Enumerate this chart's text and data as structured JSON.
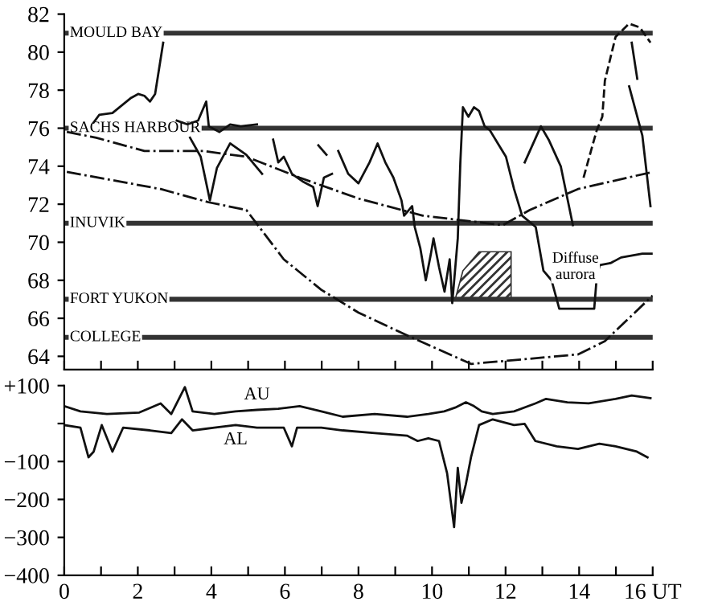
{
  "chart_data": [
    {
      "type": "line",
      "xlim": [
        0,
        16
      ],
      "ylim": [
        63.3,
        82
      ],
      "xticks": [
        {
          "value": 0,
          "label": null
        },
        {
          "value": 1,
          "label": null
        },
        {
          "value": 2,
          "label": null
        },
        {
          "value": 3,
          "label": null
        },
        {
          "value": 4,
          "label": null
        },
        {
          "value": 5,
          "label": null
        },
        {
          "value": 6,
          "label": null
        },
        {
          "value": 7,
          "label": null
        },
        {
          "value": 8,
          "label": null
        },
        {
          "value": 9,
          "label": null
        },
        {
          "value": 10,
          "label": null
        },
        {
          "value": 11,
          "label": null
        },
        {
          "value": 12,
          "label": null
        },
        {
          "value": 13,
          "label": null
        },
        {
          "value": 14,
          "label": null
        },
        {
          "value": 15,
          "label": null
        },
        {
          "value": 16,
          "label": null
        }
      ],
      "yticks": [
        64,
        66,
        68,
        70,
        72,
        74,
        76,
        78,
        80,
        82
      ],
      "tick_labels": "y",
      "grid": false,
      "legend": false,
      "marker": "none",
      "ref_lines": [
        {
          "axis": "y",
          "value": 81,
          "label": "MOULD BAY",
          "color": "#333333"
        },
        {
          "axis": "y",
          "value": 76,
          "label": "SACHS HARBOUR",
          "color": "#333333"
        },
        {
          "axis": "y",
          "value": 71,
          "label": "INUVIK",
          "color": "#333333"
        },
        {
          "axis": "y",
          "value": 67,
          "label": "FORT YUKON",
          "color": "#333333"
        },
        {
          "axis": "y",
          "value": 65,
          "label": "COLLEGE",
          "color": "#333333"
        }
      ],
      "annotations": [
        {
          "text": "Diffuse\naurora",
          "x": 13.9,
          "y": 68.7
        }
      ],
      "series": [
        {
          "color": "#111111",
          "line_style": "solid",
          "x": [
            0.8,
            0.95,
            1.31,
            1.82,
            2.01,
            2.18,
            2.33,
            2.47,
            2.69
          ],
          "values": [
            76.3,
            76.7,
            76.8,
            77.6,
            77.8,
            77.7,
            77.4,
            77.8,
            80.5
          ]
        },
        {
          "color": "#111111",
          "line_style": "dashdot",
          "x": [
            0.07,
            0.87,
            2.18,
            3.78,
            4.95,
            6.4,
            8.0,
            9.75,
            11.93,
            12.66,
            13.97,
            16.0
          ],
          "values": [
            75.8,
            75.5,
            74.8,
            74.8,
            74.5,
            73.4,
            72.3,
            71.4,
            70.9,
            71.7,
            72.8,
            73.7
          ]
        },
        {
          "color": "#111111",
          "line_style": "dashdot",
          "x": [
            0.07,
            2.62,
            3.93,
            4.95,
            5.97,
            6.99,
            8.0,
            9.32,
            11.06,
            13.97,
            14.7,
            16.0
          ],
          "values": [
            73.7,
            72.8,
            72.1,
            71.7,
            69.1,
            67.5,
            66.3,
            65.1,
            63.6,
            64.1,
            64.8,
            67.2
          ]
        },
        {
          "color": "#111111",
          "line_style": "solid",
          "x": [
            3.06,
            3.35,
            3.64,
            3.86,
            3.93,
            4.22,
            4.51,
            4.8,
            5.24
          ],
          "values": [
            76.4,
            76.2,
            76.4,
            77.4,
            76.1,
            75.8,
            76.2,
            76.1,
            76.2
          ]
        },
        {
          "color": "#111111",
          "line_style": "solid",
          "x": [
            3.42,
            3.71,
            3.96,
            4.15,
            4.51,
            4.95,
            5.38
          ],
          "values": [
            75.5,
            74.5,
            72.2,
            73.9,
            75.2,
            74.6,
            73.6
          ]
        },
        {
          "color": "#111111",
          "line_style": "solid",
          "x": [
            5.68,
            5.82,
            5.97,
            6.19,
            6.48,
            6.77,
            6.89,
            7.06,
            7.28
          ],
          "values": [
            75.4,
            74.2,
            74.5,
            73.6,
            73.2,
            72.9,
            71.9,
            73.4,
            73.6
          ]
        },
        {
          "color": "#111111",
          "line_style": "solid",
          "x": [
            6.91,
            7.13
          ],
          "values": [
            75.1,
            74.6
          ]
        },
        {
          "color": "#111111",
          "line_style": "solid",
          "x": [
            7.45,
            7.72,
            8.0,
            8.3,
            8.52,
            8.73,
            8.95,
            9.17,
            9.24,
            9.46,
            9.53,
            9.68,
            9.83,
            9.97,
            10.04,
            10.19,
            10.34,
            10.48,
            10.55,
            10.7,
            10.77,
            10.84,
            10.99,
            11.14,
            11.28,
            11.43,
            11.57,
            11.79,
            12.01,
            12.23,
            12.45,
            12.82,
            13.03,
            13.25,
            13.46,
            13.97,
            14.41,
            14.48,
            14.56,
            14.85,
            15.14,
            15.72,
            16.0
          ],
          "values": [
            74.8,
            73.6,
            73.1,
            74.2,
            75.2,
            74.2,
            73.4,
            72.2,
            71.4,
            71.9,
            70.8,
            69.7,
            68.0,
            69.4,
            70.2,
            68.7,
            67.4,
            69.1,
            66.8,
            70.2,
            74.2,
            77.1,
            76.6,
            77.1,
            76.9,
            76.1,
            75.9,
            75.2,
            74.5,
            72.8,
            71.4,
            70.8,
            68.5,
            68.0,
            66.5,
            66.5,
            66.5,
            68.2,
            68.8,
            68.9,
            69.2,
            69.4,
            69.4
          ]
        },
        {
          "color": "#111111",
          "line_style": "solid",
          "x": [
            12.52,
            12.96,
            13.17,
            13.5,
            13.83
          ],
          "values": [
            74.2,
            76.1,
            75.4,
            74.0,
            70.9
          ]
        },
        {
          "color": "#111111",
          "line_style": "solid",
          "x": [
            15.43,
            15.58
          ],
          "values": [
            80.5,
            78.6
          ]
        },
        {
          "color": "#111111",
          "line_style": "solid",
          "x": [
            15.36,
            15.72,
            15.94
          ],
          "values": [
            78.2,
            75.6,
            71.9
          ]
        },
        {
          "color": "#111111",
          "line_style": "dashed",
          "x": [
            14.12,
            14.48,
            14.63,
            14.7,
            14.99,
            15.36,
            15.65,
            15.94
          ],
          "values": [
            73.4,
            75.9,
            76.6,
            78.5,
            80.8,
            81.5,
            81.3,
            80.5
          ]
        },
        {
          "type": "area",
          "color": "#333333",
          "x": [
            10.63,
            10.84,
            11.28,
            12.15,
            12.15
          ],
          "values": [
            67.0,
            68.5,
            69.5,
            69.5,
            67.0
          ]
        }
      ]
    },
    {
      "type": "line",
      "xlim": [
        0,
        16
      ],
      "ylim": [
        -400,
        100
      ],
      "xticks": [
        0,
        {
          "value": 1,
          "label": null
        },
        2,
        {
          "value": 3,
          "label": null
        },
        4,
        {
          "value": 5,
          "label": null
        },
        6,
        {
          "value": 7,
          "label": null
        },
        8,
        {
          "value": 9,
          "label": null
        },
        10,
        {
          "value": 11,
          "label": null
        },
        12,
        {
          "value": 13,
          "label": null
        },
        14,
        {
          "value": 15,
          "label": null
        },
        {
          "value": 16,
          "label": "16 UT"
        }
      ],
      "yticks": [
        {
          "value": 100,
          "label": "+100"
        },
        {
          "value": 0,
          "label": null
        },
        {
          "value": -100,
          "label": "−100"
        },
        {
          "value": -200,
          "label": "−200"
        },
        {
          "value": -300,
          "label": "−300"
        },
        {
          "value": -400,
          "label": "−400"
        }
      ],
      "grid": false,
      "legend": false,
      "marker": "none",
      "series": [
        {
          "name": "AU",
          "color": "#111111",
          "line_style": "solid",
          "x": [
            0,
            0.44,
            1.16,
            2.04,
            2.62,
            2.91,
            3.28,
            3.49,
            4.08,
            4.66,
            5.24,
            5.82,
            6.4,
            6.99,
            7.57,
            8.44,
            9.32,
            9.9,
            10.33,
            10.63,
            10.92,
            11.14,
            11.35,
            11.65,
            12.23,
            12.81,
            13.1,
            13.68,
            14.26,
            14.99,
            15.43,
            15.94
          ],
          "values": [
            46,
            32,
            25,
            29,
            53,
            25,
            96,
            32,
            25,
            32,
            36,
            39,
            46,
            32,
            18,
            25,
            18,
            25,
            32,
            42,
            56,
            46,
            32,
            25,
            32,
            53,
            65,
            56,
            53,
            65,
            74,
            67
          ]
        },
        {
          "name": "AL",
          "color": "#111111",
          "line_style": "solid",
          "x": [
            0,
            0.44,
            0.66,
            0.8,
            1.02,
            1.31,
            1.6,
            2.33,
            2.91,
            3.2,
            3.49,
            4.08,
            4.66,
            5.24,
            5.97,
            6.19,
            6.33,
            6.99,
            7.57,
            8.44,
            9.32,
            9.61,
            9.9,
            10.19,
            10.41,
            10.6,
            10.7,
            10.8,
            10.92,
            11.06,
            11.28,
            11.65,
            12.23,
            12.52,
            12.81,
            13.39,
            13.97,
            14.55,
            14.99,
            15.57,
            15.86
          ],
          "values": [
            -4,
            -11,
            -89,
            -74,
            -4,
            -74,
            -11,
            -18,
            -25,
            11,
            -18,
            -11,
            -4,
            -11,
            -11,
            -60,
            -11,
            -11,
            -18,
            -25,
            -32,
            -46,
            -39,
            -46,
            -131,
            -273,
            -117,
            -209,
            -160,
            -89,
            -4,
            11,
            -4,
            -1,
            -46,
            -60,
            -67,
            -53,
            -60,
            -74,
            -89
          ]
        }
      ]
    }
  ]
}
